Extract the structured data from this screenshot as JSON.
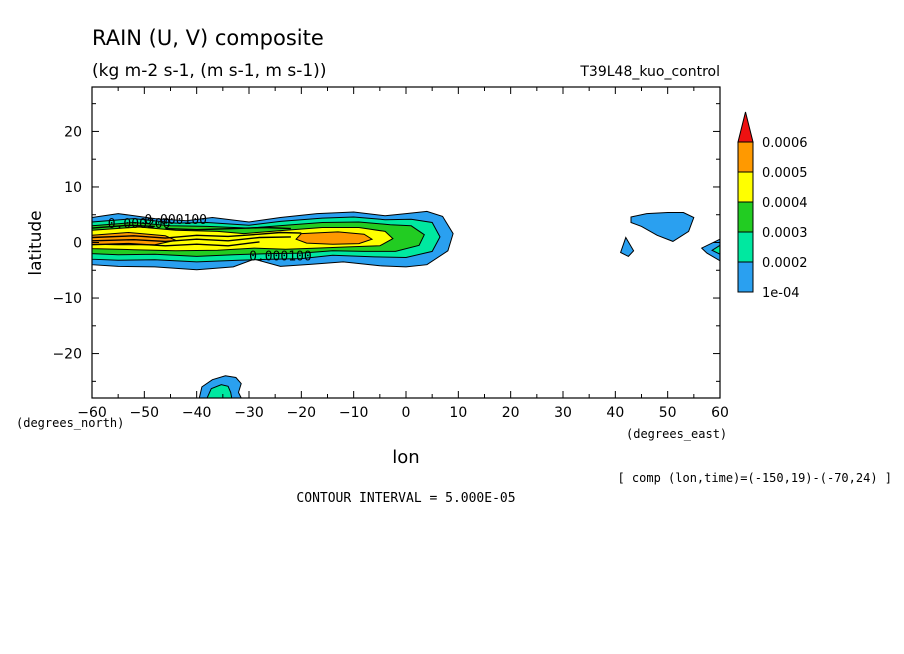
{
  "chart_data": {
    "type": "contour",
    "title": "RAIN (U, V) composite",
    "subtitle": "(kg m-2 s-1, (m s-1, m s-1))",
    "run_label": "T39L48_kuo_control",
    "xlabel": "lon",
    "ylabel": "latitude",
    "x_unit_label": "(degrees_east)",
    "y_unit_label": "(degrees_north)",
    "xlim": [
      -60,
      60
    ],
    "ylim": [
      -28,
      28
    ],
    "x_ticks": [
      -60,
      -50,
      -40,
      -30,
      -20,
      -10,
      0,
      10,
      20,
      30,
      40,
      50,
      60
    ],
    "y_ticks": [
      20,
      10,
      0,
      -10,
      -20
    ],
    "contour_interval_label": "CONTOUR INTERVAL = 5.000E-05",
    "composite_label": "[ comp (lon,time)=(-150,19)-(-70,24) ]",
    "colorbar": {
      "levels": [
        "1e-04",
        "0.0002",
        "0.0003",
        "0.0004",
        "0.0005",
        "0.0006"
      ],
      "colors": [
        "#2aa0f0",
        "#00e8a0",
        "#22cc22",
        "#ffff00",
        "#ff9900",
        "#ee1111"
      ]
    },
    "contour_labels": [
      {
        "text": "0.000100",
        "lon": -44,
        "lat": 4
      },
      {
        "text": "0.000200",
        "lon": -51,
        "lat": 3.2
      },
      {
        "text": "0.000100",
        "lon": -24,
        "lat": -2.6
      }
    ],
    "regions": [
      {
        "level": 1,
        "points": [
          [
            -60,
            4.5
          ],
          [
            -55,
            5.2
          ],
          [
            -48,
            4.3
          ],
          [
            -42,
            3.9
          ],
          [
            -37,
            4.5
          ],
          [
            -30,
            3.7
          ],
          [
            -24,
            4.5
          ],
          [
            -17,
            5.2
          ],
          [
            -10,
            5.5
          ],
          [
            -4,
            4.8
          ],
          [
            0,
            5.2
          ],
          [
            4,
            5.6
          ],
          [
            7,
            4.7
          ],
          [
            9,
            1.6
          ],
          [
            8,
            -1.5
          ],
          [
            4,
            -4
          ],
          [
            0,
            -4.4
          ],
          [
            -5,
            -4.2
          ],
          [
            -12,
            -3.5
          ],
          [
            -18,
            -3.9
          ],
          [
            -24,
            -4.3
          ],
          [
            -29,
            -3
          ],
          [
            -33,
            -4.4
          ],
          [
            -40,
            -4.9
          ],
          [
            -48,
            -4.4
          ],
          [
            -55,
            -4.3
          ],
          [
            -60,
            -4
          ]
        ]
      },
      {
        "level": 2,
        "points": [
          [
            -60,
            3.7
          ],
          [
            -52,
            4.3
          ],
          [
            -44,
            3.5
          ],
          [
            -38,
            3.6
          ],
          [
            -30,
            3.1
          ],
          [
            -24,
            3.8
          ],
          [
            -16,
            4.4
          ],
          [
            -10,
            4.6
          ],
          [
            -4,
            4.1
          ],
          [
            1,
            4.2
          ],
          [
            5,
            3.6
          ],
          [
            6.5,
            1
          ],
          [
            5,
            -1.6
          ],
          [
            0,
            -2.7
          ],
          [
            -6,
            -2.6
          ],
          [
            -14,
            -2.3
          ],
          [
            -20,
            -2.9
          ],
          [
            -26,
            -3
          ],
          [
            -32,
            -3.2
          ],
          [
            -40,
            -3.5
          ],
          [
            -48,
            -3.1
          ],
          [
            -55,
            -3.2
          ],
          [
            -60,
            -3
          ]
        ]
      },
      {
        "level": 3,
        "points": [
          [
            -60,
            3
          ],
          [
            -52,
            3.6
          ],
          [
            -45,
            3
          ],
          [
            -38,
            2.9
          ],
          [
            -30,
            2.6
          ],
          [
            -23,
            3.1
          ],
          [
            -16,
            3.6
          ],
          [
            -9,
            3.7
          ],
          [
            -3,
            3.2
          ],
          [
            1,
            3
          ],
          [
            3.5,
            1.4
          ],
          [
            2.5,
            -0.5
          ],
          [
            -2,
            -1.6
          ],
          [
            -8,
            -1.6
          ],
          [
            -14,
            -1.5
          ],
          [
            -20,
            -1.9
          ],
          [
            -26,
            -2
          ],
          [
            -33,
            -2.2
          ],
          [
            -40,
            -2.5
          ],
          [
            -48,
            -2.1
          ],
          [
            -55,
            -2.2
          ],
          [
            -60,
            -2
          ]
        ]
      },
      {
        "level": 4,
        "points": [
          [
            -60,
            2.2
          ],
          [
            -51,
            2.8
          ],
          [
            -44,
            2.2
          ],
          [
            -36,
            2
          ],
          [
            -31,
            1.6
          ],
          [
            -23,
            2.2
          ],
          [
            -16,
            2.7
          ],
          [
            -9,
            2.7
          ],
          [
            -4,
            2
          ],
          [
            -2.5,
            0.7
          ],
          [
            -5,
            -0.6
          ],
          [
            -11,
            -0.8
          ],
          [
            -17,
            -1
          ],
          [
            -23,
            -1.2
          ],
          [
            -29,
            -1
          ],
          [
            -36,
            -1.4
          ],
          [
            -44,
            -1.5
          ],
          [
            -52,
            -1.3
          ],
          [
            -60,
            -1.1
          ]
        ]
      },
      {
        "level": 5,
        "points": [
          [
            -60,
            1.3
          ],
          [
            -53,
            1.8
          ],
          [
            -46,
            1.2
          ],
          [
            -44,
            0.4
          ],
          [
            -48,
            -0.4
          ],
          [
            -55,
            -0.4
          ],
          [
            -60,
            -0.3
          ]
        ]
      },
      {
        "level": 5,
        "points": [
          [
            -20,
            1.6
          ],
          [
            -13,
            1.9
          ],
          [
            -8,
            1.5
          ],
          [
            -6.5,
            0.6
          ],
          [
            -9,
            -0.2
          ],
          [
            -14,
            -0.3
          ],
          [
            -19,
            -0.1
          ],
          [
            -21,
            0.6
          ]
        ]
      },
      {
        "level": 1,
        "points": [
          [
            43,
            4.6
          ],
          [
            46,
            5.2
          ],
          [
            50,
            5.4
          ],
          [
            53,
            5.4
          ],
          [
            55,
            4.5
          ],
          [
            54,
            2
          ],
          [
            51,
            0.2
          ],
          [
            48,
            1.3
          ],
          [
            45,
            2.9
          ],
          [
            43,
            3.6
          ]
        ]
      },
      {
        "level": 1,
        "points": [
          [
            42,
            0.9
          ],
          [
            43.5,
            -1.5
          ],
          [
            42.5,
            -2.5
          ],
          [
            41,
            -1.8
          ]
        ]
      },
      {
        "level": 1,
        "points": [
          [
            60,
            0.6
          ],
          [
            56.5,
            -1
          ],
          [
            57.5,
            -1.9
          ],
          [
            60,
            -3.3
          ]
        ]
      },
      {
        "level": 2,
        "points": [
          [
            60,
            -0.5
          ],
          [
            58.5,
            -1.4
          ],
          [
            60,
            -2.1
          ]
        ]
      },
      {
        "level": 1,
        "points": [
          [
            -39.5,
            -28
          ],
          [
            -39,
            -26
          ],
          [
            -37,
            -24.7
          ],
          [
            -34.5,
            -24
          ],
          [
            -32.5,
            -24.3
          ],
          [
            -31.5,
            -25.4
          ],
          [
            -32,
            -27
          ],
          [
            -31.5,
            -28
          ]
        ]
      },
      {
        "level": 2,
        "points": [
          [
            -38,
            -28
          ],
          [
            -37.2,
            -26.3
          ],
          [
            -35.3,
            -25.6
          ],
          [
            -34,
            -25.9
          ],
          [
            -33.5,
            -27
          ],
          [
            -33.3,
            -28
          ]
        ]
      }
    ],
    "contour_lines": [
      {
        "points": [
          [
            -60,
            0.9
          ],
          [
            -52,
            1.2
          ],
          [
            -46,
            0.8
          ],
          [
            -40,
            1.3
          ],
          [
            -34,
            1.1
          ],
          [
            -28,
            1.5
          ],
          [
            -24,
            1.8
          ],
          [
            -20,
            1.7
          ]
        ]
      },
      {
        "points": [
          [
            -60,
            0.3
          ],
          [
            -52,
            0.5
          ],
          [
            -46,
            0.2
          ],
          [
            -40,
            0.6
          ],
          [
            -34,
            0.3
          ],
          [
            -28,
            0.9
          ],
          [
            -22,
            1
          ]
        ]
      },
      {
        "points": [
          [
            -60,
            -0.4
          ],
          [
            -53,
            -0.2
          ],
          [
            -46,
            -0.6
          ],
          [
            -40,
            -0.3
          ],
          [
            -34,
            -0.6
          ],
          [
            -28,
            0.1
          ]
        ]
      },
      {
        "points": [
          [
            -46,
            2.5
          ],
          [
            -40,
            2.3
          ],
          [
            -33,
            2.5
          ],
          [
            -27,
            2.7
          ],
          [
            -22,
            2.5
          ]
        ]
      },
      {
        "points": [
          [
            -60,
            2.6
          ],
          [
            -53,
            3.1
          ],
          [
            -48,
            2.9
          ]
        ]
      }
    ]
  }
}
